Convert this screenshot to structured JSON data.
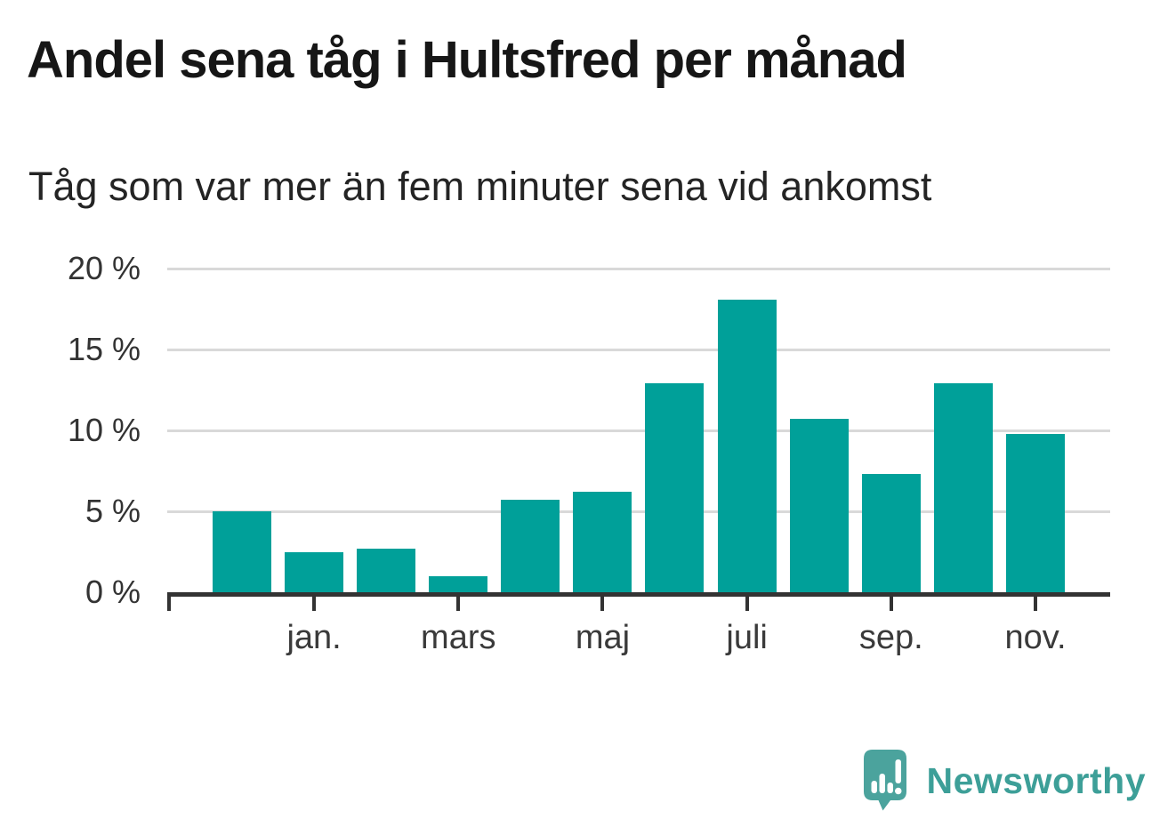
{
  "header": {
    "title": "Andel sena tåg i Hultsfred per månad",
    "subtitle": "Tåg som var mer än fem minuter sena vid ankomst"
  },
  "chart_data": {
    "type": "bar",
    "title": "Andel sena tåg i Hultsfred per månad",
    "subtitle": "Tåg som var mer än fem minuter sena vid ankomst",
    "values": [
      5.0,
      2.5,
      2.7,
      1.0,
      5.7,
      6.2,
      12.9,
      18.1,
      10.7,
      7.3,
      12.9,
      9.8
    ],
    "x_tick_labels": [
      "",
      "jan.",
      "",
      "mars",
      "",
      "maj",
      "",
      "juli",
      "",
      "sep.",
      "",
      "nov."
    ],
    "y_ticks": [
      {
        "value": 0,
        "label": "0 %"
      },
      {
        "value": 5,
        "label": "5 %"
      },
      {
        "value": 10,
        "label": "10 %"
      },
      {
        "value": 15,
        "label": "15 %"
      },
      {
        "value": 20,
        "label": "20 %"
      }
    ],
    "ylim": [
      0,
      20
    ],
    "grid": true,
    "legend": "none",
    "bar_color": "#00A099",
    "gridline_color": "#d9d9d9",
    "axis_color": "#333333"
  },
  "branding": {
    "logo_text": "Newsworthy",
    "logo_color": "#3D9F98",
    "logo_icon": "speech-bubble-bar-chart-icon"
  }
}
